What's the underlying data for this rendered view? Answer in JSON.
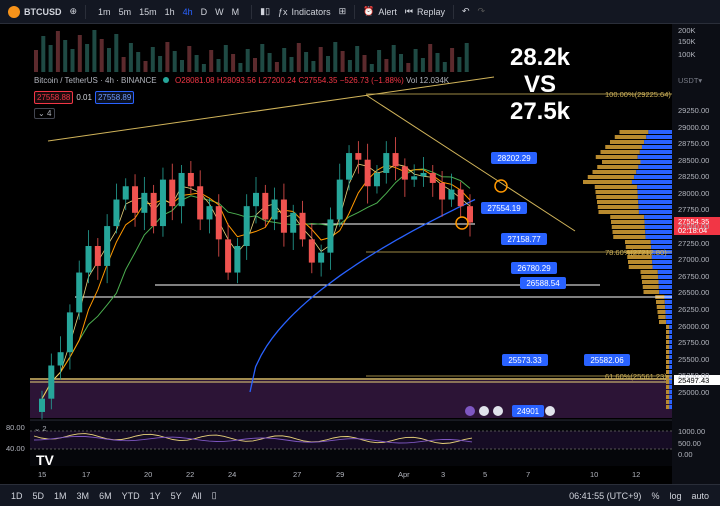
{
  "toolbar": {
    "symbol": "BTCUSD",
    "intervals": [
      "1m",
      "5m",
      "15m",
      "1h",
      "4h",
      "D",
      "W",
      "M"
    ],
    "active_interval": "4h",
    "indicators_label": "Indicators",
    "alert_label": "Alert",
    "replay_label": "Replay"
  },
  "legend": {
    "title": "Bitcoin / TetherUS · 4h · BINANCE",
    "o": "O28081.08",
    "h": "H28093.56",
    "l": "L27200.24",
    "c": "C27554.35",
    "chg": "−526.73 (−1.88%)",
    "vol": "Vol 12.034K",
    "bid": "27558.88",
    "spread": "0.01",
    "ask": "27558.89",
    "count": "4"
  },
  "annotation": {
    "line1": "28.2k",
    "line2": "VS",
    "line3": "27.5k"
  },
  "bottombar": {
    "ranges": [
      "1D",
      "5D",
      "1M",
      "3M",
      "6M",
      "YTD",
      "1Y",
      "5Y",
      "All"
    ],
    "time": "06:41:55 (UTC+9)",
    "pct": "%",
    "log": "log",
    "auto": "auto"
  },
  "chart_data": {
    "type": "candlestick",
    "x_ticks": [
      "15",
      "17",
      "20",
      "22",
      "24",
      "27",
      "29",
      "Apr",
      "3",
      "5",
      "7",
      "10",
      "12"
    ],
    "y_ticks": [
      "29250.00",
      "29000.00",
      "28750.00",
      "28500.00",
      "28250.00",
      "28000.00",
      "27750.00",
      "27500.00",
      "27250.00",
      "27000.00",
      "26750.00",
      "26500.00",
      "26250.00",
      "26000.00",
      "25750.00",
      "25500.00",
      "25250.00",
      "25000.00"
    ],
    "volume_ticks": [
      "200K",
      "150K",
      "100K"
    ],
    "osc_ticks": [
      "80.00",
      "40.00"
    ],
    "osc_right_ticks": [
      "1000.00",
      "500.00",
      "0.00"
    ],
    "osc_count": "2",
    "ylim": [
      24850,
      29550
    ],
    "current_price": "27554.35",
    "countdown": "02:18:04",
    "last_price_label": "25497.43",
    "closes": [
      24900,
      25400,
      25600,
      26200,
      26800,
      27200,
      26900,
      27500,
      27900,
      28100,
      27700,
      28000,
      27500,
      28200,
      27800,
      28300,
      28100,
      27600,
      27800,
      27300,
      26800,
      27200,
      27800,
      28000,
      27600,
      27900,
      27400,
      27700,
      27300,
      26950,
      27100,
      27600,
      28200,
      28600,
      28500,
      28100,
      28300,
      28600,
      28400,
      28200,
      28250,
      28300,
      28150,
      27900,
      28050,
      27800,
      27554
    ],
    "price_tags": [
      "28202.29",
      "27554.19",
      "27158.77",
      "26780.29",
      "26588.54",
      "25573.33",
      "25582.06",
      "24901"
    ],
    "fib_labels": [
      "100.00%(29225.64)",
      "78.60%(27212.80)",
      "61.60%(25561.23)"
    ]
  }
}
